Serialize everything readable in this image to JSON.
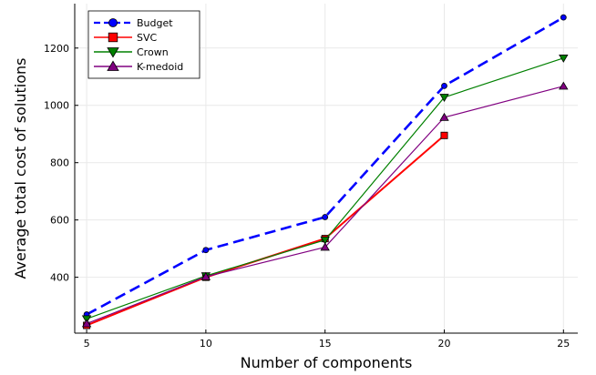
{
  "chart_data": {
    "type": "line",
    "title": "",
    "xlabel": "Number of components",
    "ylabel": "Average total cost of solutions",
    "x": [
      5,
      10,
      15,
      20,
      25
    ],
    "xlim": [
      4.5,
      25.6
    ],
    "ylim": [
      205,
      1355
    ],
    "xticks": [
      "5",
      "10",
      "15",
      "20",
      "25"
    ],
    "yticks": [
      "400",
      "600",
      "800",
      "1000",
      "1200"
    ],
    "grid": true,
    "legend_position": "top-left",
    "series": [
      {
        "name": "Budget",
        "values": [
          270,
          495,
          610,
          1068,
          1307
        ],
        "color": "#0000ff",
        "marker": "circle",
        "dash": "dashed"
      },
      {
        "name": "SVC",
        "values": [
          232,
          400,
          535,
          895,
          null
        ],
        "color": "#ff0000",
        "marker": "square",
        "dash": "solid"
      },
      {
        "name": "Crown",
        "values": [
          255,
          405,
          530,
          1028,
          1165
        ],
        "color": "#008000",
        "marker": "triangle-down",
        "dash": "solid"
      },
      {
        "name": "K-medoid",
        "values": [
          238,
          402,
          505,
          958,
          1067
        ],
        "color": "#800080",
        "marker": "triangle-up",
        "dash": "solid"
      }
    ]
  }
}
